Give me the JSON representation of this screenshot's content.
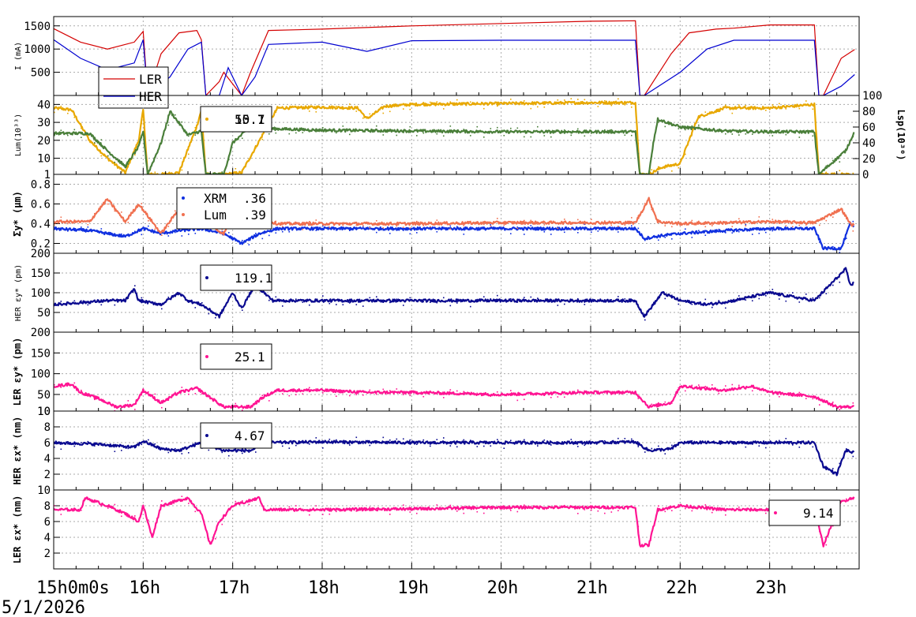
{
  "date_label": "5/1/2026",
  "chart_data": {
    "type": "line",
    "x_axis": {
      "range": [
        "15:00",
        "24:00"
      ],
      "tick_labels": [
        "15h0m0s",
        "16h",
        "17h",
        "18h",
        "19h",
        "20h",
        "21h",
        "22h",
        "23h"
      ]
    },
    "colors": {
      "ler_current": "#d40000",
      "her_current": "#0000d0",
      "lum": "#e8a800",
      "lsp": "#4a7f3a",
      "xrm": "#1030e0",
      "lum_sigma": "#f07050",
      "her_emit": "#0a0a90",
      "ler_emit": "#ff1493"
    },
    "panels": [
      {
        "id": "current",
        "ylabel": "I (mA)",
        "ylim": [
          0,
          1700
        ],
        "yticks": [
          "500",
          "1000",
          "1500"
        ],
        "ytick_values": [
          500,
          1000,
          1500
        ],
        "legend": [
          {
            "label": "LER",
            "color": "#d40000"
          },
          {
            "label": "HER",
            "color": "#0000d0"
          }
        ],
        "series": [
          {
            "name": "LER",
            "color": "#d40000",
            "x": [
              15.0,
              15.3,
              15.6,
              15.9,
              16.0,
              16.05,
              16.2,
              16.4,
              16.6,
              16.65,
              16.7,
              16.85,
              16.9,
              17.1,
              17.2,
              17.4,
              18.0,
              19.0,
              20.0,
              21.0,
              21.5,
              21.55,
              21.6,
              21.9,
              22.1,
              22.4,
              22.6,
              23.0,
              23.5,
              23.55,
              23.6,
              23.8,
              23.95
            ],
            "y": [
              1440,
              1150,
              1000,
              1150,
              1380,
              0,
              900,
              1350,
              1400,
              1200,
              0,
              300,
              500,
              0,
              500,
              1400,
              1430,
              1500,
              1550,
              1600,
              1610,
              0,
              0,
              900,
              1350,
              1430,
              1450,
              1520,
              1520,
              0,
              0,
              800,
              990
            ]
          },
          {
            "name": "HER",
            "color": "#0000d0",
            "x": [
              15.0,
              15.3,
              15.6,
              15.9,
              16.0,
              16.05,
              16.3,
              16.5,
              16.65,
              16.7,
              16.85,
              16.95,
              17.1,
              17.25,
              17.4,
              18.0,
              18.5,
              19.0,
              20.0,
              21.0,
              21.5,
              21.55,
              21.6,
              22.0,
              22.3,
              22.6,
              23.0,
              23.5,
              23.55,
              23.6,
              23.8,
              23.95
            ],
            "y": [
              1200,
              800,
              550,
              700,
              1200,
              0,
              400,
              1000,
              1150,
              0,
              0,
              600,
              0,
              400,
              1100,
              1150,
              950,
              1180,
              1190,
              1190,
              1190,
              0,
              0,
              500,
              1000,
              1190,
              1190,
              1190,
              0,
              0,
              200,
              450
            ]
          }
        ]
      },
      {
        "id": "luminosity",
        "ylabel": "Lum(10³³)",
        "ylim": [
          1,
          45
        ],
        "yticks": [
          "1",
          "10",
          "20",
          "30",
          "40"
        ],
        "ytick_values": [
          1,
          10,
          20,
          30,
          40
        ],
        "y2label": "Lsp(10³⁰)",
        "y2lim": [
          0,
          100
        ],
        "y2ticks": [
          "0",
          "20",
          "40",
          "60",
          "80",
          "100"
        ],
        "y2tick_values": [
          0,
          20,
          40,
          60,
          80,
          100
        ],
        "legend_values": [
          "50.7",
          "15.1"
        ],
        "series": [
          {
            "name": "Lum",
            "color": "#e8a800",
            "x": [
              15.0,
              15.2,
              15.4,
              15.6,
              15.8,
              15.95,
              16.0,
              16.05,
              16.2,
              16.4,
              16.6,
              16.65,
              16.7,
              16.9,
              17.1,
              17.3,
              17.5,
              18.0,
              18.4,
              18.5,
              18.7,
              19.0,
              20.0,
              21.0,
              21.5,
              21.55,
              21.65,
              21.8,
              22.0,
              22.2,
              22.5,
              22.8,
              23.0,
              23.5,
              23.55,
              23.95
            ],
            "y": [
              38,
              37,
              20,
              10,
              2,
              20,
              37,
              1,
              1,
              2,
              28,
              37,
              1,
              1,
              2,
              20,
              38,
              38.5,
              38,
              32,
              39,
              40,
              40.5,
              41,
              41,
              1,
              1,
              5,
              7,
              33,
              38,
              38,
              38,
              40,
              1,
              1
            ]
          },
          {
            "name": "Lsp",
            "color": "#4a7f3a",
            "x": [
              15.0,
              15.4,
              15.6,
              15.8,
              15.95,
              16.0,
              16.05,
              16.2,
              16.3,
              16.5,
              16.65,
              16.7,
              16.9,
              17.0,
              17.2,
              17.4,
              18.0,
              19.0,
              20.0,
              21.0,
              21.5,
              21.55,
              21.65,
              21.7,
              21.75,
              22.0,
              22.5,
              23.0,
              23.5,
              23.55,
              23.85,
              23.95
            ],
            "y": [
              52,
              52,
              30,
              10,
              35,
              55,
              0,
              40,
              80,
              50,
              55,
              0,
              0,
              40,
              60,
              58,
              56,
              55,
              54,
              54,
              54,
              0,
              0,
              40,
              70,
              60,
              55,
              54,
              54,
              0,
              30,
              55
            ]
          }
        ]
      },
      {
        "id": "beamsize",
        "ylabel": "Σy* (µm)",
        "ylim": [
          0.1,
          0.9
        ],
        "yticks": [
          "0.2",
          "0.4",
          "0.6",
          "0.8"
        ],
        "ytick_values": [
          0.2,
          0.4,
          0.6,
          0.8
        ],
        "legend": [
          {
            "label": "XRM",
            "value": ".36",
            "color": "#1030e0"
          },
          {
            "label": "Lum",
            "value": ".39",
            "color": "#f07050"
          }
        ],
        "series": [
          {
            "name": "XRM",
            "color": "#1030e0",
            "x": [
              15.0,
              15.4,
              15.6,
              15.8,
              15.95,
              16.0,
              16.2,
              16.4,
              16.65,
              16.9,
              17.1,
              17.3,
              17.5,
              18.0,
              19.0,
              20.0,
              21.0,
              21.5,
              21.6,
              21.8,
              22.0,
              22.5,
              23.0,
              23.5,
              23.6,
              23.8,
              23.9,
              23.95
            ],
            "y": [
              0.35,
              0.33,
              0.3,
              0.27,
              0.33,
              0.35,
              0.3,
              0.33,
              0.35,
              0.3,
              0.2,
              0.3,
              0.35,
              0.35,
              0.35,
              0.35,
              0.35,
              0.35,
              0.25,
              0.28,
              0.3,
              0.33,
              0.35,
              0.35,
              0.15,
              0.15,
              0.4,
              0.35
            ]
          },
          {
            "name": "Lum",
            "color": "#f07050",
            "x": [
              15.0,
              15.4,
              15.6,
              15.8,
              15.95,
              16.2,
              16.4,
              16.6,
              16.9,
              17.1,
              17.3,
              17.5,
              18.0,
              19.0,
              20.0,
              21.0,
              21.5,
              21.65,
              21.75,
              22.0,
              22.5,
              23.0,
              23.5,
              23.8,
              23.9,
              23.95
            ],
            "y": [
              0.42,
              0.42,
              0.65,
              0.42,
              0.6,
              0.3,
              0.55,
              0.45,
              0.3,
              0.6,
              0.45,
              0.4,
              0.4,
              0.4,
              0.41,
              0.41,
              0.41,
              0.65,
              0.42,
              0.4,
              0.41,
              0.42,
              0.41,
              0.55,
              0.4,
              0.38
            ]
          }
        ]
      },
      {
        "id": "her_emit_y",
        "ylabel": "HER εy* (pm)",
        "ylim": [
          0,
          200
        ],
        "yticks": [
          "50",
          "100",
          "150",
          "200"
        ],
        "ytick_values": [
          50,
          100,
          150,
          200
        ],
        "legend_values": [
          "119.1"
        ],
        "series": [
          {
            "name": "HER eps_y",
            "color": "#0a0a90",
            "x": [
              15.0,
              15.3,
              15.6,
              15.8,
              15.9,
              15.95,
              16.2,
              16.4,
              16.5,
              16.65,
              16.85,
              17.0,
              17.1,
              17.25,
              17.35,
              17.45,
              18.0,
              18.5,
              19.0,
              20.0,
              21.0,
              21.5,
              21.6,
              21.8,
              22.0,
              22.3,
              22.6,
              23.0,
              23.5,
              23.85,
              23.9,
              23.95
            ],
            "y": [
              70,
              75,
              80,
              80,
              110,
              80,
              70,
              100,
              80,
              70,
              40,
              100,
              60,
              120,
              100,
              80,
              80,
              80,
              80,
              80,
              80,
              80,
              40,
              100,
              80,
              70,
              80,
              100,
              80,
              160,
              120,
              125
            ]
          }
        ]
      },
      {
        "id": "ler_emit_y",
        "ylabel": "LER εy* (pm)",
        "ylim": [
          10,
          200
        ],
        "yticks": [
          "10",
          "50",
          "100",
          "150",
          "200"
        ],
        "ytick_values": [
          10,
          50,
          100,
          150,
          200
        ],
        "legend_values": [
          "25.1"
        ],
        "series": [
          {
            "name": "LER eps_y",
            "color": "#ff1493",
            "x": [
              15.0,
              15.2,
              15.3,
              15.5,
              15.7,
              15.9,
              16.0,
              16.2,
              16.4,
              16.6,
              16.9,
              17.2,
              17.35,
              17.5,
              18.0,
              18.5,
              19.0,
              20.0,
              21.0,
              21.5,
              21.65,
              21.9,
              22.0,
              22.5,
              22.8,
              23.0,
              23.5,
              23.75,
              23.95
            ],
            "y": [
              70,
              75,
              55,
              40,
              20,
              25,
              60,
              30,
              55,
              65,
              20,
              20,
              45,
              60,
              60,
              55,
              55,
              50,
              55,
              55,
              20,
              30,
              70,
              60,
              70,
              55,
              45,
              20,
              20
            ]
          }
        ]
      },
      {
        "id": "her_emit_x",
        "ylabel": "HER εx* (nm)",
        "ylim": [
          0,
          10
        ],
        "yticks": [
          "2",
          "4",
          "6",
          "8",
          "10"
        ],
        "ytick_values": [
          2,
          4,
          6,
          8,
          10
        ],
        "legend_values": [
          "4.67"
        ],
        "series": [
          {
            "name": "HER eps_x",
            "color": "#0a0a90",
            "x": [
              15.0,
              15.5,
              15.9,
              16.0,
              16.2,
              16.4,
              16.65,
              16.9,
              17.2,
              17.4,
              18.0,
              19.0,
              20.0,
              21.0,
              21.5,
              21.65,
              21.9,
              22.0,
              22.5,
              23.0,
              23.5,
              23.6,
              23.75,
              23.85,
              23.95
            ],
            "y": [
              6,
              5.8,
              5.4,
              6.2,
              5.2,
              5.0,
              6.0,
              5.0,
              5.0,
              6.0,
              6.1,
              6.0,
              6.0,
              6.0,
              6.1,
              5.0,
              5.2,
              6.0,
              6.0,
              6.0,
              6.0,
              3.0,
              2.0,
              5.0,
              4.7
            ]
          }
        ]
      },
      {
        "id": "ler_emit_x",
        "ylabel": "LER εx* (nm)",
        "ylim": [
          0,
          10
        ],
        "yticks": [
          "2",
          "4",
          "6",
          "8",
          "10"
        ],
        "ytick_values": [
          2,
          4,
          6,
          8,
          10
        ],
        "legend_values": [
          "9.14"
        ],
        "series": [
          {
            "name": "LER eps_x",
            "color": "#ff1493",
            "x": [
              15.0,
              15.3,
              15.35,
              15.6,
              15.8,
              15.95,
              16.0,
              16.1,
              16.2,
              16.5,
              16.65,
              16.75,
              16.85,
              17.0,
              17.3,
              17.35,
              18.0,
              19.0,
              20.0,
              21.0,
              21.5,
              21.55,
              21.65,
              21.75,
              22.0,
              22.5,
              23.0,
              23.5,
              23.6,
              23.8,
              23.95
            ],
            "y": [
              7.5,
              7.5,
              9.0,
              8.0,
              7.0,
              6.0,
              8.0,
              4.0,
              8.0,
              9.0,
              7.0,
              3.0,
              6.0,
              8.0,
              9.0,
              7.5,
              7.5,
              7.6,
              7.8,
              7.8,
              7.8,
              3.0,
              3.0,
              7.5,
              8.0,
              7.5,
              7.5,
              7.6,
              3.0,
              8.5,
              9.1
            ]
          }
        ]
      }
    ]
  }
}
